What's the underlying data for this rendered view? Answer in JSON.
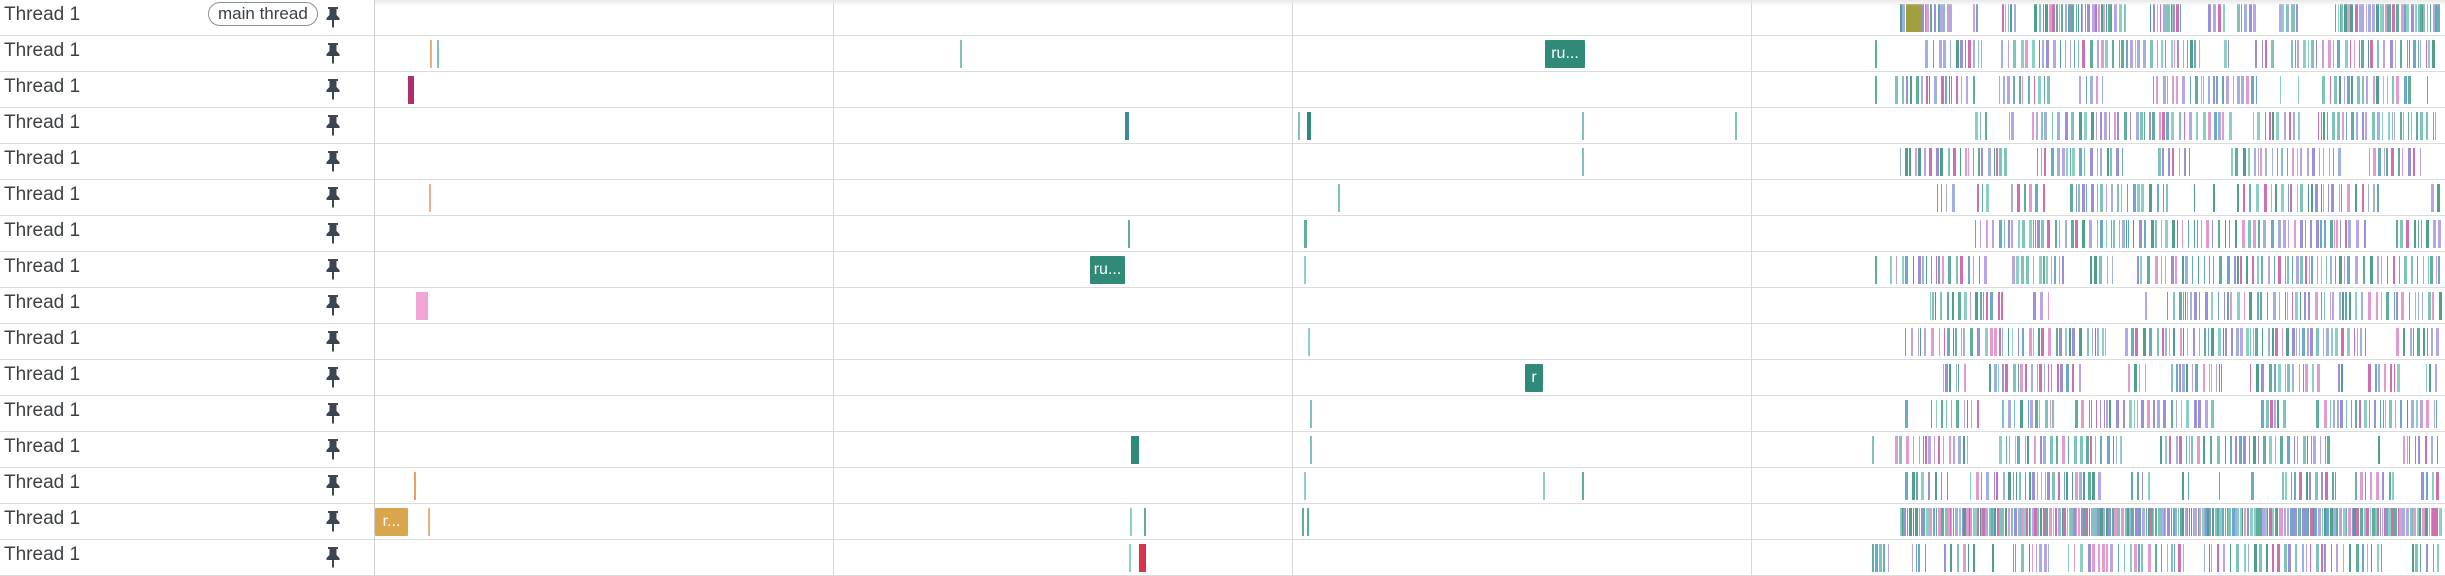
{
  "tracks": [
    {
      "name": "Thread 1",
      "badge": "main thread",
      "pin_icon": "pin-icon",
      "slices": [],
      "dense_from": 1900,
      "dense_pattern": "heavy"
    },
    {
      "name": "Thread 1",
      "pin_icon": "pin-icon",
      "slices": [
        {
          "label": "ru...",
          "color": "#2f8a78"
        }
      ],
      "dense_from": 1925,
      "dense_pattern": "normal"
    },
    {
      "name": "Thread 1",
      "pin_icon": "pin-icon",
      "slices": [],
      "dense_from": 1895,
      "dense_pattern": "normal"
    },
    {
      "name": "Thread 1",
      "pin_icon": "pin-icon",
      "slices": [],
      "dense_from": 1975,
      "dense_pattern": "normal"
    },
    {
      "name": "Thread 1",
      "pin_icon": "pin-icon",
      "slices": [],
      "dense_from": 1900,
      "dense_pattern": "normal"
    },
    {
      "name": "Thread 1",
      "pin_icon": "pin-icon",
      "slices": [],
      "dense_from": 1920,
      "dense_pattern": "normal"
    },
    {
      "name": "Thread 1",
      "pin_icon": "pin-icon",
      "slices": [],
      "dense_from": 1975,
      "dense_pattern": "normal"
    },
    {
      "name": "Thread 1",
      "pin_icon": "pin-icon",
      "slices": [
        {
          "label": "ru...",
          "color": "#2f8a78"
        }
      ],
      "dense_from": 1890,
      "dense_pattern": "normal"
    },
    {
      "name": "Thread 1",
      "pin_icon": "pin-icon",
      "slices": [],
      "dense_from": 1930,
      "dense_pattern": "normal"
    },
    {
      "name": "Thread 1",
      "pin_icon": "pin-icon",
      "slices": [],
      "dense_from": 1905,
      "dense_pattern": "normal"
    },
    {
      "name": "Thread 1",
      "pin_icon": "pin-icon",
      "slices": [
        {
          "label": "r",
          "color": "#2f8a78"
        }
      ],
      "dense_from": 1905,
      "dense_pattern": "normal"
    },
    {
      "name": "Thread 1",
      "pin_icon": "pin-icon",
      "slices": [],
      "dense_from": 1905,
      "dense_pattern": "normal"
    },
    {
      "name": "Thread 1",
      "pin_icon": "pin-icon",
      "slices": [],
      "dense_from": 1895,
      "dense_pattern": "normal"
    },
    {
      "name": "Thread 1",
      "pin_icon": "pin-icon",
      "slices": [],
      "dense_from": 1905,
      "dense_pattern": "normal"
    },
    {
      "name": "Thread 1",
      "pin_icon": "pin-icon",
      "slices": [
        {
          "label": "r...",
          "color": "#d9a64e"
        }
      ],
      "dense_from": 1900,
      "dense_pattern": "packed"
    },
    {
      "name": "Thread 1",
      "pin_icon": "pin-icon",
      "slices": [],
      "dense_from": 1875,
      "dense_pattern": "normal"
    }
  ],
  "palette": [
    "#7fc4b8",
    "#9c8fd9",
    "#e39ad0",
    "#5fae9c",
    "#b8a4e8",
    "#6aa9c9",
    "#cf6fb0",
    "#8cd0c5",
    "#a0b0e0",
    "#4f9f8c"
  ]
}
